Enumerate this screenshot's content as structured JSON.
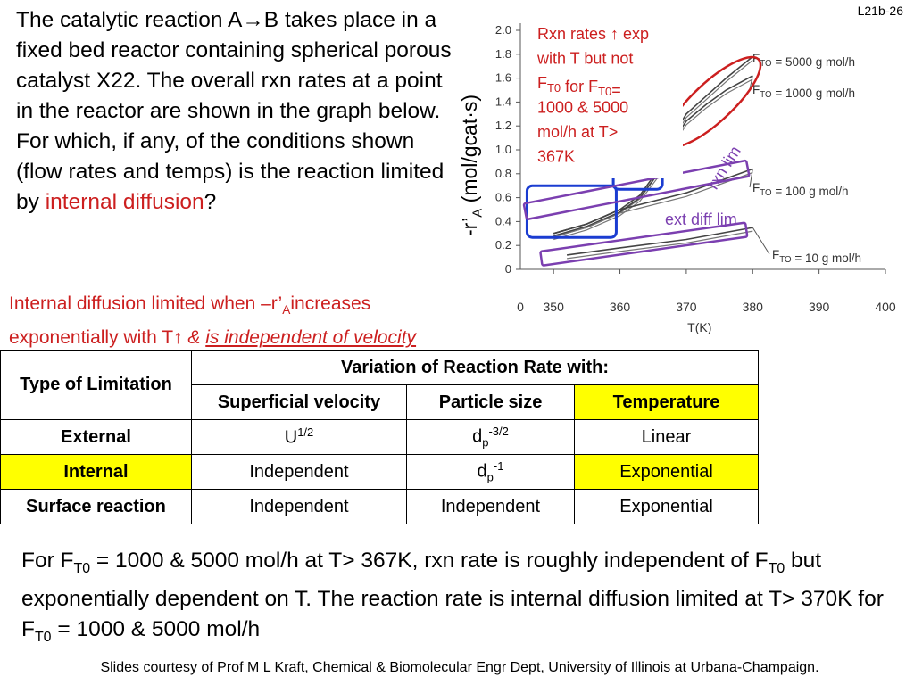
{
  "slide_id": "L21b-26",
  "intro": {
    "part1": "The catalytic reaction A→B takes place in a fixed bed reactor containing spherical porous catalyst X22.  The overall rxn rates at a point in the reactor are shown in the graph below. For which, if any, of the conditions shown (flow rates and temps) is the reaction limited by ",
    "highlight": "internal diffusion",
    "part2": "?"
  },
  "rule": {
    "line1a": "Internal diffusion limited when  –r’",
    "line1_sub": "A",
    "line1b": "increases",
    "line2a": "exponentially with T↑ ",
    "line2_amp": "& ",
    "line2_u": "is independent of velocity"
  },
  "chart": {
    "y_label": "-r’",
    "y_label_sub": "A",
    "y_label_units": " (mol/gcat·s)",
    "x_label": "T(K)",
    "y_ticks": [
      "0",
      "0.2",
      "0.4",
      "0.6",
      "0.8",
      "1.0",
      "1.2",
      "1.4",
      "1.6",
      "1.8",
      "2.0"
    ],
    "x_ticks": [
      "350",
      "360",
      "370",
      "380",
      "390",
      "400"
    ],
    "note_lines": [
      "Rxn rates ↑ exp",
      "with T but not",
      "F_T0 for F_T0=",
      "1000 & 5000",
      "mol/h at T>",
      "367K"
    ],
    "note_color": "#cc1f1f",
    "rxn_lim_label": "rxn lim",
    "ext_diff_label": "ext diff lim",
    "annotation_color": "#7b3fb0",
    "series_labels": [
      "F_TO = 5000 g mol/h",
      "F_TO = 1000 g mol/h",
      "F_TO = 100 g mol/h",
      "F_TO = 10 g mol/h"
    ]
  },
  "chart_data": {
    "type": "line",
    "xlabel": "T(K)",
    "ylabel": "-r'A (mol/gcat·s)",
    "xlim": [
      345,
      400
    ],
    "ylim": [
      0,
      2.0
    ],
    "series": [
      {
        "name": "F_TO = 5000 g mol/h",
        "x": [
          350,
          355,
          360,
          363,
          366,
          368,
          370,
          373,
          376,
          380
        ],
        "y": [
          0.3,
          0.38,
          0.5,
          0.62,
          0.85,
          1.12,
          1.3,
          1.45,
          1.6,
          1.78
        ]
      },
      {
        "name": "F_TO = 1000 g mol/h",
        "x": [
          350,
          355,
          360,
          363,
          366,
          368,
          370,
          373,
          376,
          380
        ],
        "y": [
          0.28,
          0.36,
          0.48,
          0.6,
          0.82,
          1.07,
          1.24,
          1.38,
          1.5,
          1.62
        ]
      },
      {
        "name": "F_TO = 100 g mol/h",
        "x": [
          350,
          355,
          360,
          370,
          380
        ],
        "y": [
          0.3,
          0.38,
          0.5,
          0.64,
          0.84
        ]
      },
      {
        "name": "F_TO = 10 g mol/h",
        "x": [
          352,
          360,
          370,
          380
        ],
        "y": [
          0.12,
          0.18,
          0.25,
          0.35
        ]
      }
    ]
  },
  "table": {
    "type_header": "Type of Limitation",
    "variation_header": "Variation of Reaction Rate with:",
    "col_headers": [
      "Superficial velocity",
      "Particle size",
      "Temperature"
    ],
    "rows": [
      {
        "type": "External",
        "velocity": "U",
        "velocity_sup": "1/2",
        "size": "d",
        "size_sub": "p",
        "size_sup": "-3/2",
        "temp": "Linear"
      },
      {
        "type": "Internal",
        "velocity": "Independent",
        "size": "d",
        "size_sub": "p",
        "size_sup": "-1",
        "temp": "Exponential"
      },
      {
        "type": "Surface reaction",
        "velocity": "Independent",
        "size": "Independent",
        "temp": "Exponential"
      }
    ],
    "highlight_color": "#ffff00"
  },
  "conclusion": {
    "t1": "For F",
    "s1": "T0",
    "t2": " = 1000 & 5000 mol/h at T> 367K, rxn rate is roughly independent of F",
    "s2": "T0",
    "t3": " but exponentially dependent on T.  The reaction rate is internal diffusion limited at T> 370K for  F",
    "s3": "T0",
    "t4": " = 1000 & 5000 mol/h"
  },
  "footer": "Slides courtesy of Prof M L Kraft, Chemical & Biomolecular Engr Dept, University of Illinois at Urbana-Champaign."
}
